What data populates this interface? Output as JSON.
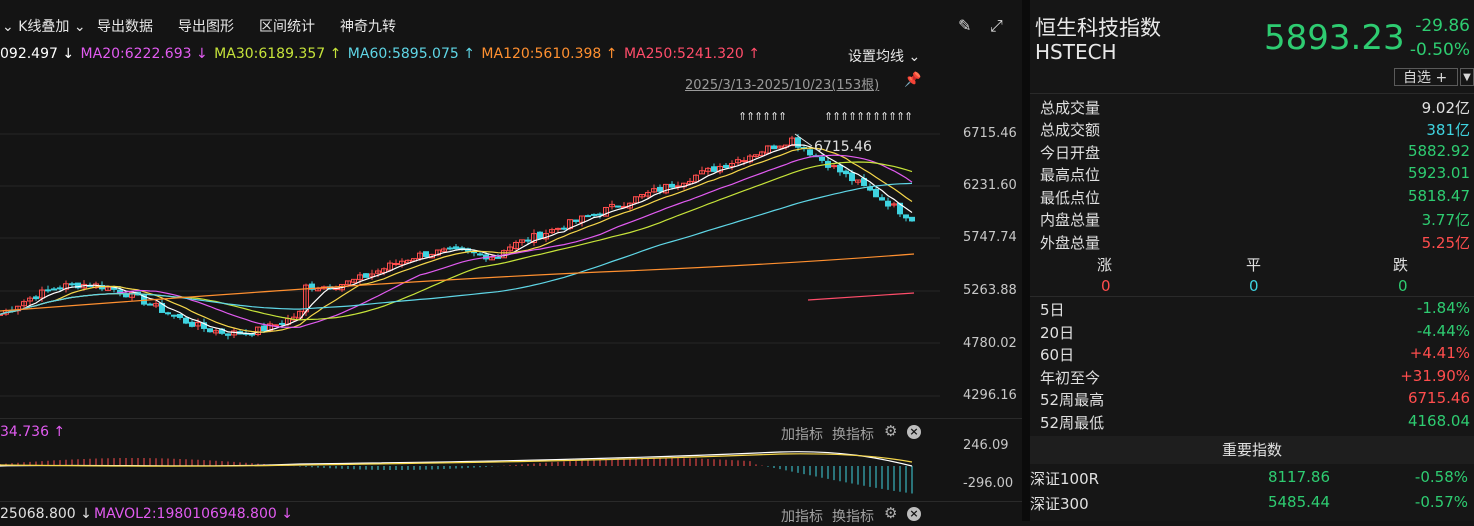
{
  "toolbar": {
    "kline_overlay": "K线叠加",
    "export_data": "导出数据",
    "export_chart": "导出图形",
    "range_stats": "区间统计",
    "magic_nine": "神奇九转"
  },
  "ma_legend": [
    {
      "text": "092.497 ↓",
      "color": "#ffffff"
    },
    {
      "text": "MA20:6222.693 ↓",
      "color": "#e15bf0"
    },
    {
      "text": "MA30:6189.357 ↑",
      "color": "#c6e33a"
    },
    {
      "text": "MA60:5895.075 ↑",
      "color": "#5fd6e6"
    },
    {
      "text": "MA120:5610.398 ↑",
      "color": "#ff9030"
    },
    {
      "text": "MA250:5241.320 ↑",
      "color": "#ff4d6a"
    }
  ],
  "set_ma_label": "设置均线 ⌄",
  "date_range": "2025/3/13-2025/10/23(153根)",
  "price_axis": [
    "6715.46",
    "6231.60",
    "5747.74",
    "5263.88",
    "4780.02",
    "4296.16"
  ],
  "high_marker": "6715.46",
  "sub1": {
    "header": "34.736 ↑",
    "axis_top": "246.09",
    "axis_bottom": "-296.00",
    "add_indicator": "加指标",
    "switch_indicator": "换指标"
  },
  "sub2": {
    "header_left": "25068.800 ↓",
    "header_right": "MAVOL2:1980106948.800 ↓",
    "add_indicator": "加指标",
    "switch_indicator": "换指标"
  },
  "quote": {
    "name": "恒生科技指数",
    "code": "HSTECH",
    "price": "5893.23",
    "change": "-29.86",
    "change_pct": "-0.50%",
    "favorite_label": "自选 +"
  },
  "stats": [
    {
      "label": "总成交量",
      "value": "9.02亿",
      "color": "#e0e0e0"
    },
    {
      "label": "总成交额",
      "value": "381亿",
      "color": "#3fd3e0"
    },
    {
      "label": "今日开盘",
      "value": "5882.92",
      "color": "#2ecc71"
    },
    {
      "label": "最高点位",
      "value": "5923.01",
      "color": "#2ecc71"
    },
    {
      "label": "最低点位",
      "value": "5818.47",
      "color": "#2ecc71"
    },
    {
      "label": "内盘总量",
      "value": "3.77亿",
      "color": "#2ecc71"
    },
    {
      "label": "外盘总量",
      "value": "5.25亿",
      "color": "#ff4d4d"
    }
  ],
  "breadth": {
    "up_label": "涨",
    "flat_label": "平",
    "down_label": "跌",
    "up": "0",
    "flat": "0",
    "down": "0"
  },
  "performance": [
    {
      "label": "5日",
      "value": "-1.84%",
      "color": "#2ecc71"
    },
    {
      "label": "20日",
      "value": "-4.44%",
      "color": "#2ecc71"
    },
    {
      "label": "60日",
      "value": "+4.41%",
      "color": "#ff4d4d"
    },
    {
      "label": "年初至今",
      "value": "+31.90%",
      "color": "#ff4d4d"
    },
    {
      "label": "52周最高",
      "value": "6715.46",
      "color": "#ff4d4d"
    },
    {
      "label": "52周最低",
      "value": "4168.04",
      "color": "#2ecc71"
    }
  ],
  "important_header": "重要指数",
  "indices": [
    {
      "name": "深证100R",
      "price": "8117.86",
      "change": "-0.58%"
    },
    {
      "name": "深证300",
      "price": "5485.44",
      "change": "-0.57%"
    }
  ],
  "colors": {
    "up": "#ff4d4d",
    "down": "#2ecc71",
    "cyan": "#3fd3e0"
  }
}
